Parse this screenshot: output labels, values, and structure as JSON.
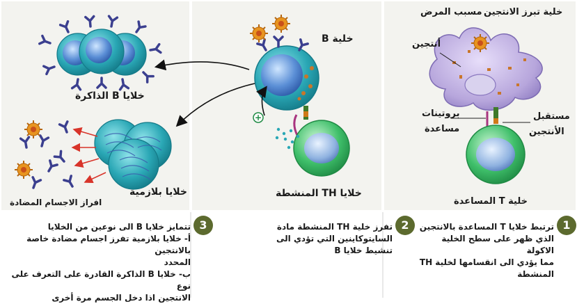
{
  "panel1": {
    "number": "1",
    "labels": {
      "apc": "خلية تبرز الانتجين",
      "pathogen": "مسبب المرض",
      "antigen": "أنتجين",
      "helper_proteins_1": "بروتينات",
      "helper_proteins_2": "مساعدة",
      "receptor_1": "مستقبل",
      "receptor_2": "الأنتجين",
      "t_cell": "خلية T المساعدة"
    },
    "caption": [
      "ترتبط خلايا T المساعدة بالانتجين",
      "الذي ظهر على سطح الخلية الاكولة",
      "مما يؤدي الى انقسامها لخلية TH",
      "المنشطة"
    ]
  },
  "panel2": {
    "number": "2",
    "labels": {
      "b_cell": "خلية B",
      "th_cells": "خلايا TH المنشطة",
      "plus": "+"
    },
    "caption": [
      "تفرز خلية TH المنشطة مادة",
      "السايتوكاينين التي تؤدي الى",
      "تنشيط خلايا B"
    ]
  },
  "panel3": {
    "number": "3",
    "labels": {
      "memory_cells": "خلايا B الذاكرة",
      "plasma_cells": "خلايا بلازمية",
      "antibody_secretion": "افراز الاجسام المضادة"
    },
    "caption": [
      "تتمايز خلايا B الى نوعين من الخلايا",
      "أ- خلايا بلازمية تفرز اجسام مضادة خاصة بالانتجين",
      "المحدد",
      "ب- خلايا B الذاكرة القادرة على التعرف على نوع",
      "الانتجين اذا دخل الجسم مرة أخرى"
    ]
  },
  "colors": {
    "panel_bg": "#f3f3ef",
    "badge": "#5c6a2e",
    "b_cell": "#2aa7b5",
    "t_cell": "#3fbf6a",
    "apc": "#b7a6dc",
    "antibody": "#3b3f8f",
    "pathogen": "#e8941f",
    "arrow_red": "#d8342a"
  }
}
